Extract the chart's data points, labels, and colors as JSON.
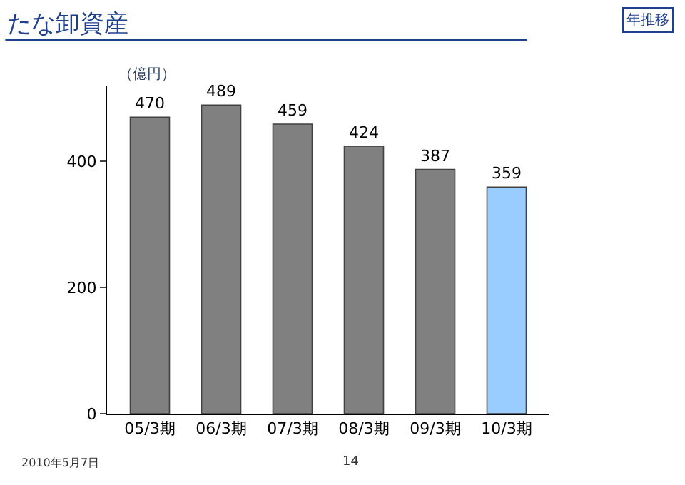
{
  "chart_data": {
    "type": "bar",
    "title": "たな卸資産",
    "subtitle": "年推移",
    "ylabel": "（億円）",
    "categories": [
      "05/3期",
      "06/3期",
      "07/3期",
      "08/3期",
      "09/3期",
      "10/3期"
    ],
    "values": [
      470,
      489,
      459,
      424,
      387,
      359
    ],
    "colors": [
      "#808080",
      "#808080",
      "#808080",
      "#808080",
      "#808080",
      "#99ccff"
    ],
    "ylim": [
      0,
      520
    ],
    "yticks": [
      0,
      200,
      400
    ],
    "data_labels": true,
    "annotations": [
      "2010年5月7日",
      "14"
    ]
  }
}
